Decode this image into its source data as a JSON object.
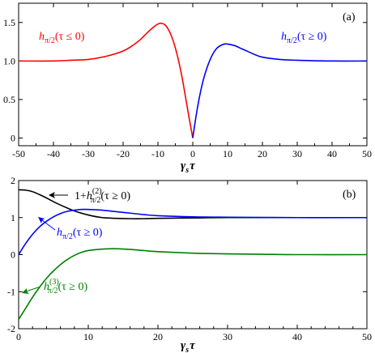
{
  "chart_data": [
    {
      "panel": "(a)",
      "type": "line",
      "xlabel": "γ_s τ",
      "ylabel": "",
      "xlim": [
        -50,
        50
      ],
      "ylim": [
        -0.1,
        1.75
      ],
      "xticks": [
        "-50",
        "-40",
        "-30",
        "-20",
        "-10",
        "0",
        "10",
        "20",
        "30",
        "40",
        "50"
      ],
      "yticks": [
        "0",
        "0.5",
        "1.0",
        "1.5"
      ],
      "series": [
        {
          "name": "h_{π/2}(τ ≤ 0)",
          "color": "#ff0000",
          "x": [
            -50,
            -40,
            -35,
            -30,
            -25,
            -20,
            -17,
            -15,
            -13,
            -11,
            -10,
            -9,
            -8,
            -7,
            -6,
            -5,
            -4,
            -3,
            -2,
            -1,
            0
          ],
          "y": [
            1.0,
            1.0,
            1.01,
            1.02,
            1.06,
            1.13,
            1.21,
            1.28,
            1.37,
            1.45,
            1.48,
            1.49,
            1.47,
            1.41,
            1.31,
            1.17,
            0.99,
            0.77,
            0.51,
            0.25,
            0.0
          ]
        },
        {
          "name": "h_{π/2}(τ ≥ 0)",
          "color": "#0000ff",
          "x": [
            0,
            1,
            2,
            3,
            4,
            5,
            6,
            7,
            8,
            9,
            10,
            12,
            14,
            16,
            18,
            20,
            25,
            30,
            40,
            50
          ],
          "y": [
            0.0,
            0.3,
            0.55,
            0.75,
            0.9,
            1.02,
            1.11,
            1.17,
            1.2,
            1.22,
            1.22,
            1.2,
            1.16,
            1.12,
            1.08,
            1.05,
            1.02,
            1.01,
            1.0,
            1.0
          ]
        }
      ]
    },
    {
      "panel": "(b)",
      "type": "line",
      "xlabel": "γ_s τ",
      "ylabel": "",
      "xlim": [
        0,
        50
      ],
      "ylim": [
        -2,
        2
      ],
      "xticks": [
        "0",
        "10",
        "20",
        "30",
        "40",
        "50"
      ],
      "yticks": [
        "-2",
        "-1",
        "0",
        "1",
        "2"
      ],
      "series": [
        {
          "name": "1+h^{(2)}_{π/2}(τ ≥ 0)",
          "color": "#000000",
          "x": [
            0,
            1,
            2,
            3,
            4,
            5,
            6,
            8,
            10,
            12,
            14,
            16,
            18,
            20,
            25,
            30,
            40,
            50
          ],
          "y": [
            1.75,
            1.74,
            1.7,
            1.62,
            1.53,
            1.43,
            1.34,
            1.18,
            1.07,
            1.0,
            0.98,
            0.97,
            0.97,
            0.98,
            0.99,
            1.0,
            1.0,
            1.0
          ]
        },
        {
          "name": "h_{π/2}(τ ≥ 0)",
          "color": "#0000ff",
          "x": [
            0,
            1,
            2,
            3,
            4,
            5,
            6,
            7,
            8,
            9,
            10,
            12,
            14,
            16,
            18,
            20,
            25,
            30,
            40,
            50
          ],
          "y": [
            0.0,
            0.3,
            0.55,
            0.75,
            0.9,
            1.02,
            1.11,
            1.17,
            1.2,
            1.22,
            1.22,
            1.2,
            1.16,
            1.12,
            1.08,
            1.05,
            1.02,
            1.01,
            1.0,
            1.0
          ]
        },
        {
          "name": "h^{(3)}_{π/2}(τ ≥ 0)",
          "color": "#008000",
          "x": [
            0,
            1,
            2,
            3,
            4,
            5,
            6,
            7,
            8,
            9,
            10,
            12,
            14,
            16,
            18,
            20,
            25,
            30,
            35,
            40,
            50
          ],
          "y": [
            -1.75,
            -1.45,
            -1.15,
            -0.88,
            -0.64,
            -0.44,
            -0.27,
            -0.13,
            -0.02,
            0.06,
            0.11,
            0.15,
            0.16,
            0.14,
            0.11,
            0.08,
            0.04,
            0.02,
            0.01,
            0.0,
            0.0
          ]
        }
      ]
    }
  ],
  "labels": {
    "a_tag": "(a)",
    "b_tag": "(b)",
    "a_xlabel_main": "γ",
    "a_xlabel_sub": "s",
    "a_xlabel_tail": "τ",
    "b_xlabel_main": "γ",
    "b_xlabel_sub": "s",
    "b_xlabel_tail": "τ",
    "a_red_h": "h",
    "a_red_sub": "π/2",
    "a_red_arg": "(τ ≤ 0)",
    "a_blue_h": "h",
    "a_blue_sub": "π/2",
    "a_blue_arg": "(τ ≥ 0)",
    "b_black_pre": "1+",
    "b_black_h": "h",
    "b_black_sup": "(2)",
    "b_black_sub": "π/2",
    "b_black_arg": "(τ ≥ 0)",
    "b_blue_h": "h",
    "b_blue_sub": "π/2",
    "b_blue_arg": "(τ ≥ 0)",
    "b_green_h": "h",
    "b_green_sup": "(3)",
    "b_green_sub": "π/2",
    "b_green_arg": "(τ ≥ 0)"
  }
}
